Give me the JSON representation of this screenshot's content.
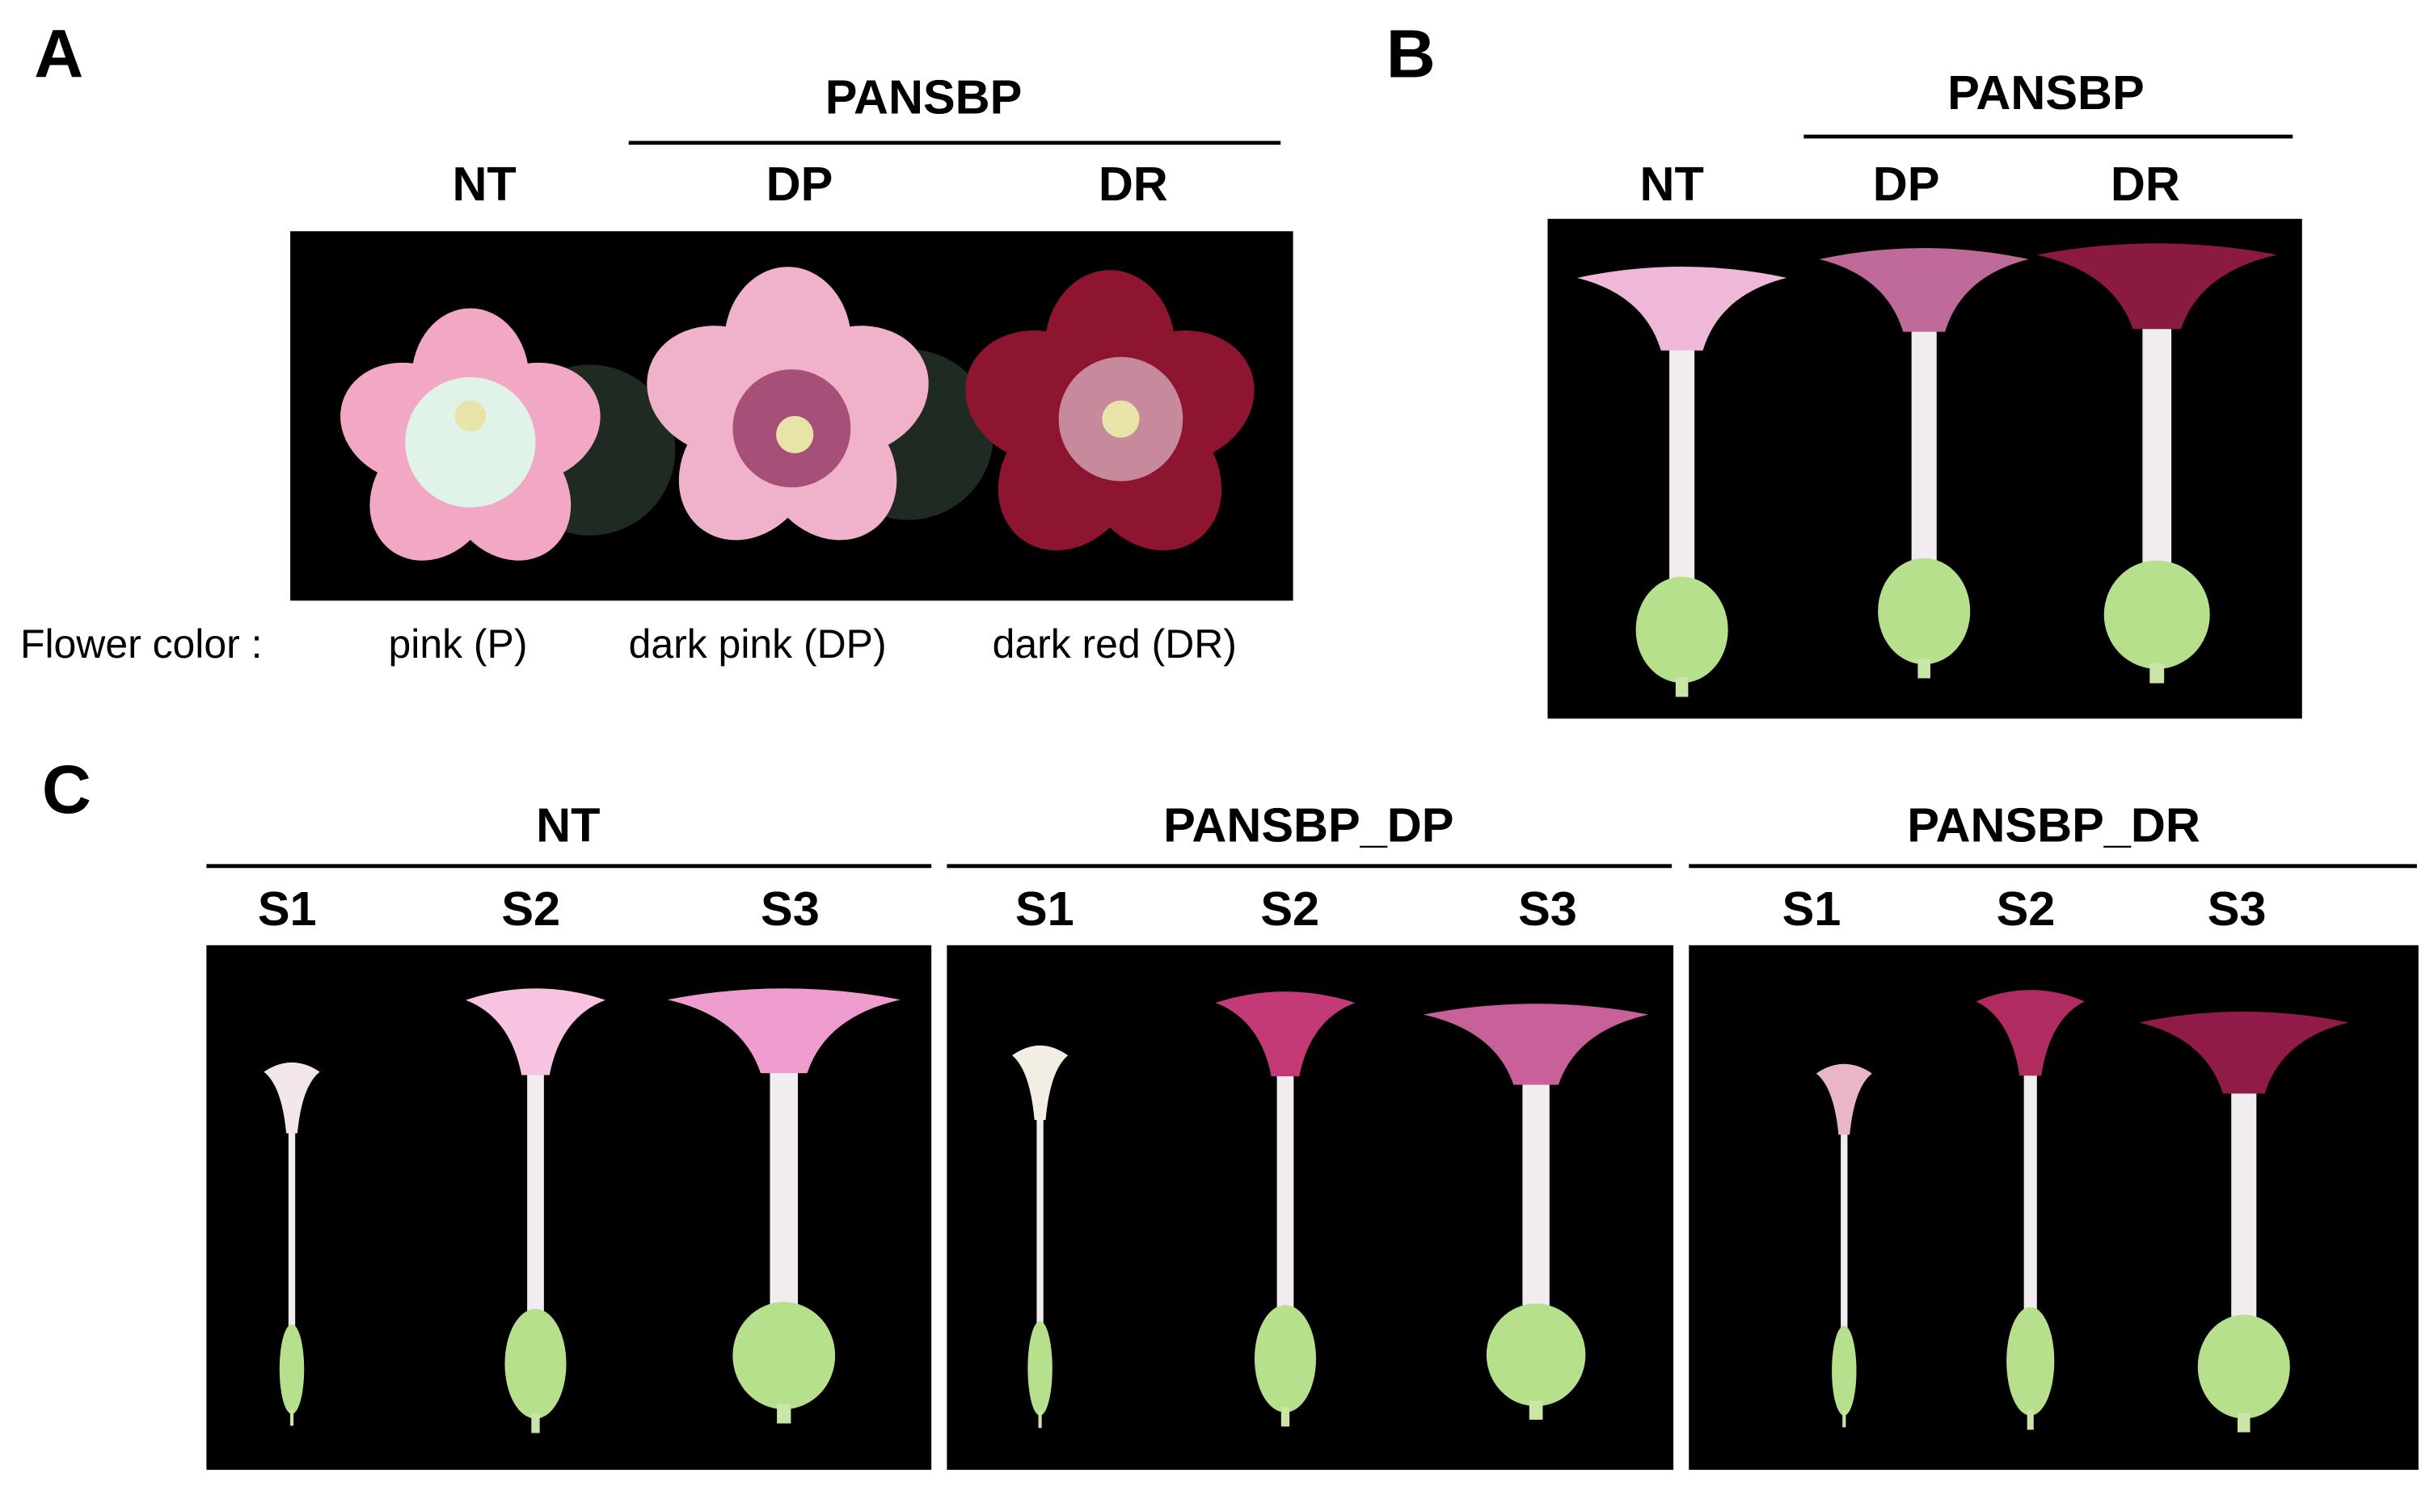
{
  "panels": [
    {
      "label": "A",
      "group": "PANSBP",
      "columns": [
        "NT",
        "DP",
        "DR"
      ],
      "row_label": "Flower color :",
      "flower_colors": [
        "pink (P)",
        "dark pink (DP)",
        "dark red (DR)"
      ]
    },
    {
      "label": "B",
      "group": "PANSBP",
      "columns": [
        "NT",
        "DP",
        "DR"
      ]
    },
    {
      "label": "C",
      "groups": [
        {
          "name": "NT",
          "stages": [
            "S1",
            "S2",
            "S3"
          ]
        },
        {
          "name": "PANSBP_DP",
          "stages": [
            "S1",
            "S2",
            "S3"
          ]
        },
        {
          "name": "PANSBP_DR",
          "stages": [
            "S1",
            "S2",
            "S3"
          ]
        }
      ]
    }
  ]
}
